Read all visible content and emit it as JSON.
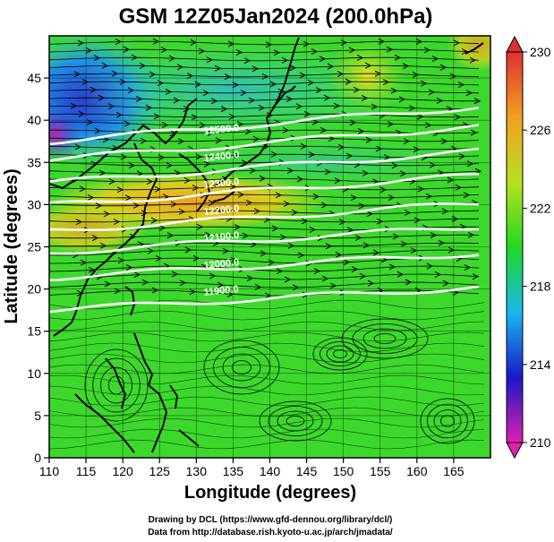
{
  "title": "GSM 12Z05Jan2024 (200.0hPa)",
  "axes": {
    "x_label": "Longitude (degrees)",
    "y_label": "Latitude  (degrees)",
    "x_ticks": [
      "110",
      "115",
      "120",
      "125",
      "130",
      "135",
      "140",
      "145",
      "150",
      "155",
      "160",
      "165"
    ],
    "y_ticks": [
      "0",
      "5",
      "10",
      "15",
      "20",
      "25",
      "30",
      "35",
      "40",
      "45"
    ],
    "x_range": [
      110,
      170
    ],
    "y_range": [
      0,
      50
    ]
  },
  "colorbar": {
    "ticks": [
      "210",
      "214",
      "218",
      "222",
      "226",
      "230"
    ],
    "range": [
      210,
      230
    ],
    "colors": [
      "#e020b0",
      "#1a18c8",
      "#18b8f0",
      "#20d820",
      "#b8e020",
      "#f0a020",
      "#e03030"
    ]
  },
  "contours": {
    "labels": [
      "12500.0",
      "12400.0",
      "12300.0",
      "12200.0",
      "12100.0",
      "12000.0",
      "11900.0"
    ],
    "color": "#ffffff"
  },
  "credits": {
    "line1": "Drawing by DCL (https://www.gfd-dennou.org/library/dcl/)",
    "line2": "Data from http://database.rish.kyoto-u.ac.jp/arch/jmadata/"
  }
}
